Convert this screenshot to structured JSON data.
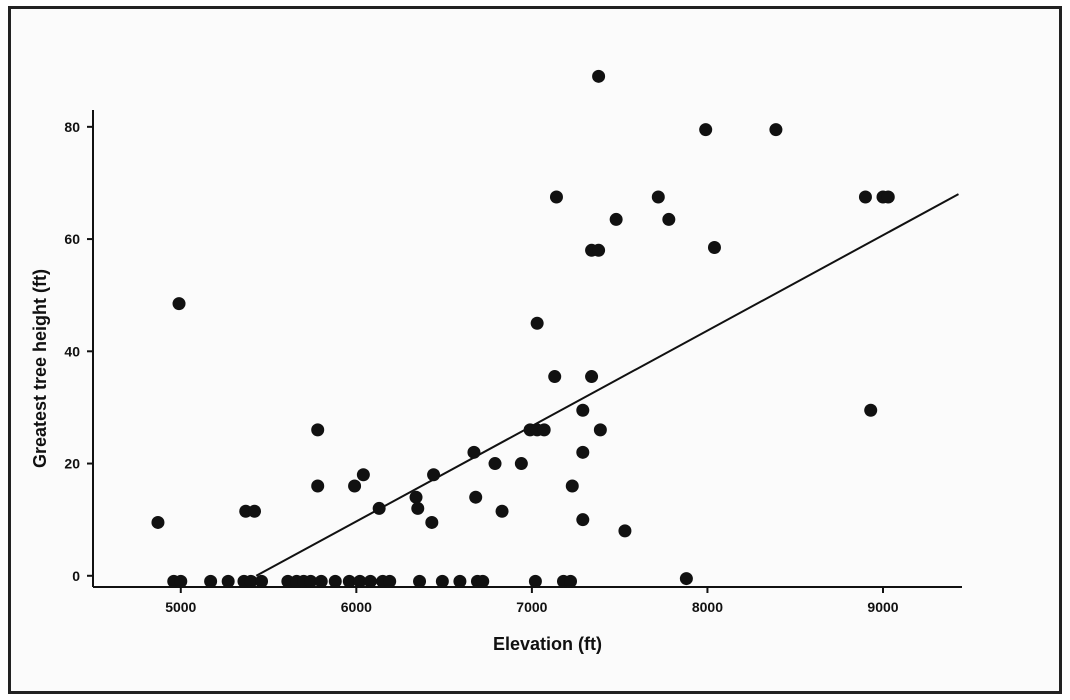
{
  "chart_data": {
    "type": "scatter",
    "title": "",
    "xlabel": "Elevation (ft)",
    "ylabel": "Greatest tree height (ft)",
    "xlim": [
      4500,
      9450
    ],
    "ylim": [
      -2,
      83
    ],
    "xticks": [
      5000,
      6000,
      7000,
      8000,
      9000
    ],
    "yticks": [
      0,
      20,
      40,
      60,
      80
    ],
    "grid": false,
    "legend": "none",
    "colors": {
      "points": "#111111",
      "line": "#111111",
      "axes": "#111111"
    },
    "points": [
      {
        "x": 4870,
        "y": 9.5
      },
      {
        "x": 4960,
        "y": -1
      },
      {
        "x": 4990,
        "y": 48.5
      },
      {
        "x": 5000,
        "y": -1
      },
      {
        "x": 5170,
        "y": -1
      },
      {
        "x": 5270,
        "y": -1
      },
      {
        "x": 5360,
        "y": -1
      },
      {
        "x": 5370,
        "y": 11.5
      },
      {
        "x": 5400,
        "y": -1
      },
      {
        "x": 5420,
        "y": 11.5
      },
      {
        "x": 5460,
        "y": -1
      },
      {
        "x": 5610,
        "y": -1
      },
      {
        "x": 5660,
        "y": -1
      },
      {
        "x": 5700,
        "y": -1
      },
      {
        "x": 5740,
        "y": -1
      },
      {
        "x": 5780,
        "y": 16
      },
      {
        "x": 5780,
        "y": 26
      },
      {
        "x": 5800,
        "y": -1
      },
      {
        "x": 5880,
        "y": -1
      },
      {
        "x": 5960,
        "y": -1
      },
      {
        "x": 5990,
        "y": 16
      },
      {
        "x": 6020,
        "y": -1
      },
      {
        "x": 6040,
        "y": 18
      },
      {
        "x": 6080,
        "y": -1
      },
      {
        "x": 6130,
        "y": 12
      },
      {
        "x": 6150,
        "y": -1
      },
      {
        "x": 6190,
        "y": -1
      },
      {
        "x": 6340,
        "y": 14
      },
      {
        "x": 6350,
        "y": 12
      },
      {
        "x": 6360,
        "y": -1
      },
      {
        "x": 6430,
        "y": 9.5
      },
      {
        "x": 6440,
        "y": 18
      },
      {
        "x": 6490,
        "y": -1
      },
      {
        "x": 6590,
        "y": -1
      },
      {
        "x": 6670,
        "y": 22
      },
      {
        "x": 6680,
        "y": 14
      },
      {
        "x": 6690,
        "y": -1
      },
      {
        "x": 6720,
        "y": -1
      },
      {
        "x": 6790,
        "y": 20
      },
      {
        "x": 6830,
        "y": 11.5
      },
      {
        "x": 6940,
        "y": 20
      },
      {
        "x": 6990,
        "y": 26
      },
      {
        "x": 7020,
        "y": -1
      },
      {
        "x": 7030,
        "y": 26
      },
      {
        "x": 7030,
        "y": 45
      },
      {
        "x": 7070,
        "y": 26
      },
      {
        "x": 7130,
        "y": 35.5
      },
      {
        "x": 7140,
        "y": 67.5
      },
      {
        "x": 7180,
        "y": -1
      },
      {
        "x": 7220,
        "y": -1
      },
      {
        "x": 7230,
        "y": 16
      },
      {
        "x": 7290,
        "y": 29.5
      },
      {
        "x": 7290,
        "y": 22
      },
      {
        "x": 7290,
        "y": 10
      },
      {
        "x": 7340,
        "y": 35.5
      },
      {
        "x": 7340,
        "y": 58
      },
      {
        "x": 7380,
        "y": 58
      },
      {
        "x": 7380,
        "y": 89
      },
      {
        "x": 7390,
        "y": 26
      },
      {
        "x": 7480,
        "y": 63.5
      },
      {
        "x": 7530,
        "y": 8
      },
      {
        "x": 7720,
        "y": 67.5
      },
      {
        "x": 7780,
        "y": 63.5
      },
      {
        "x": 7880,
        "y": -0.5
      },
      {
        "x": 7990,
        "y": 79.5
      },
      {
        "x": 8040,
        "y": 58.5
      },
      {
        "x": 8390,
        "y": 79.5
      },
      {
        "x": 8900,
        "y": 67.5
      },
      {
        "x": 8930,
        "y": 29.5
      },
      {
        "x": 9000,
        "y": 67.5
      },
      {
        "x": 9030,
        "y": 67.5
      }
    ],
    "trendline": {
      "x": [
        5430,
        9430
      ],
      "y": [
        0,
        68
      ]
    }
  }
}
